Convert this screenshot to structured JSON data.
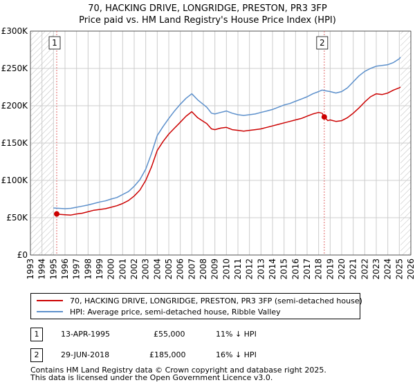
{
  "title": {
    "line1": "70, HACKING DRIVE, LONGRIDGE, PRESTON, PR3 3FP",
    "line2": "Price paid vs. HM Land Registry's House Price Index (HPI)"
  },
  "colors": {
    "price": "#cc0000",
    "hpi": "#5b8fcb",
    "grid": "#cccccc",
    "marker_line": "#e06666",
    "hatch": "#bbbbbb"
  },
  "chart_data": {
    "type": "line",
    "xlim": [
      1993,
      2026
    ],
    "ylim": [
      0,
      300000
    ],
    "yticks": [
      0,
      50000,
      100000,
      150000,
      200000,
      250000,
      300000
    ],
    "ytick_labels": [
      "£0",
      "£50K",
      "£100K",
      "£150K",
      "£200K",
      "£250K",
      "£300K"
    ],
    "xticks": [
      1993,
      1994,
      1995,
      1996,
      1997,
      1998,
      1999,
      2000,
      2001,
      2002,
      2003,
      2004,
      2005,
      2006,
      2007,
      2008,
      2009,
      2010,
      2011,
      2012,
      2013,
      2014,
      2015,
      2016,
      2017,
      2018,
      2019,
      2020,
      2021,
      2022,
      2023,
      2024,
      2025,
      2026
    ],
    "xtick_labels": [
      "1993",
      "1994",
      "1995",
      "1996",
      "1997",
      "1998",
      "1999",
      "2000",
      "2001",
      "2002",
      "2003",
      "2004",
      "2005",
      "2006",
      "2007",
      "2008",
      "2009",
      "2010",
      "2011",
      "2012",
      "2013",
      "2014",
      "2015",
      "2016",
      "2017",
      "2018",
      "2019",
      "2020",
      "2021",
      "2022",
      "2023",
      "2024",
      "2025",
      "2026"
    ],
    "hatch_ranges": [
      [
        1993,
        1995.0
      ],
      [
        2025.1,
        2026
      ]
    ],
    "series": [
      {
        "name": "70, HACKING DRIVE, LONGRIDGE, PRESTON, PR3 3FP (semi-detached house)",
        "color": "#cc0000",
        "x": [
          1995.28,
          1995.5,
          1996,
          1996.5,
          1997,
          1997.5,
          1998,
          1998.5,
          1999,
          1999.5,
          2000,
          2000.5,
          2001,
          2001.5,
          2002,
          2002.5,
          2003,
          2003.5,
          2004,
          2004.5,
          2005,
          2005.5,
          2006,
          2006.5,
          2007,
          2007.5,
          2007.9,
          2008.3,
          2008.7,
          2009,
          2009.5,
          2010,
          2010.5,
          2011,
          2011.5,
          2012,
          2012.5,
          2013,
          2013.5,
          2014,
          2014.5,
          2015,
          2015.5,
          2016,
          2016.5,
          2017,
          2017.5,
          2018,
          2018.3,
          2018.49,
          2018.8,
          2019,
          2019.5,
          2020,
          2020.5,
          2021,
          2021.5,
          2022,
          2022.5,
          2023,
          2023.5,
          2024,
          2024.5,
          2025,
          2025.1
        ],
        "y": [
          55000,
          54500,
          54000,
          53500,
          55000,
          56000,
          58000,
          60000,
          61000,
          62000,
          64000,
          66000,
          69000,
          73000,
          79000,
          87000,
          100000,
          118000,
          140000,
          152000,
          162000,
          170000,
          178000,
          186000,
          192000,
          184000,
          180000,
          176000,
          169000,
          168000,
          170000,
          171000,
          168000,
          167000,
          166000,
          167000,
          168000,
          169000,
          171000,
          173000,
          175000,
          177000,
          179000,
          181000,
          183000,
          186000,
          189000,
          191000,
          190000,
          185000,
          180000,
          181000,
          179000,
          180000,
          184000,
          190000,
          197000,
          205000,
          212000,
          216000,
          215000,
          217000,
          221000,
          224000,
          225000
        ]
      },
      {
        "name": "HPI: Average price, semi-detached house, Ribble Valley",
        "color": "#5b8fcb",
        "x": [
          1995.0,
          1995.5,
          1996,
          1996.5,
          1997,
          1997.5,
          1998,
          1998.5,
          1999,
          1999.5,
          2000,
          2000.5,
          2001,
          2001.5,
          2002,
          2002.5,
          2003,
          2003.5,
          2004,
          2004.5,
          2005,
          2005.5,
          2006,
          2006.5,
          2007,
          2007.5,
          2007.9,
          2008.3,
          2008.7,
          2009,
          2009.5,
          2010,
          2010.5,
          2011,
          2011.5,
          2012,
          2012.5,
          2013,
          2013.5,
          2014,
          2014.5,
          2015,
          2015.5,
          2016,
          2016.5,
          2017,
          2017.5,
          2018,
          2018.3,
          2018.6,
          2019,
          2019.5,
          2020,
          2020.5,
          2021,
          2021.5,
          2022,
          2022.5,
          2023,
          2023.5,
          2024,
          2024.5,
          2025,
          2025.1
        ],
        "y": [
          63000,
          62500,
          62000,
          62500,
          64000,
          65500,
          67000,
          69000,
          71000,
          72500,
          75000,
          77000,
          81000,
          85000,
          92000,
          101000,
          115000,
          136000,
          160000,
          172000,
          183000,
          193000,
          202000,
          210000,
          216000,
          208000,
          203000,
          198000,
          190000,
          189000,
          191000,
          193000,
          190000,
          188000,
          187000,
          188000,
          189000,
          191000,
          193000,
          195000,
          198000,
          201000,
          203000,
          206000,
          209000,
          212000,
          216000,
          219000,
          221000,
          220000,
          219000,
          217000,
          219000,
          224000,
          232000,
          240000,
          246000,
          250000,
          253000,
          254000,
          255000,
          258000,
          263000,
          265000
        ]
      }
    ],
    "sales": [
      {
        "label": "1",
        "x": 1995.28,
        "y": 55000
      },
      {
        "label": "2",
        "x": 2018.49,
        "y": 185000
      }
    ]
  },
  "legend": {
    "items": [
      {
        "label": "70, HACKING DRIVE, LONGRIDGE, PRESTON, PR3 3FP (semi-detached house)",
        "color": "#cc0000"
      },
      {
        "label": "HPI: Average price, semi-detached house, Ribble Valley",
        "color": "#5b8fcb"
      }
    ]
  },
  "transactions": [
    {
      "num": "1",
      "date": "13-APR-1995",
      "price": "£55,000",
      "hpi": "11% ↓ HPI"
    },
    {
      "num": "2",
      "date": "29-JUN-2018",
      "price": "£185,000",
      "hpi": "16% ↓ HPI"
    }
  ],
  "footer": {
    "line1": "Contains HM Land Registry data © Crown copyright and database right 2025.",
    "line2": "This data is licensed under the Open Government Licence v3.0."
  }
}
